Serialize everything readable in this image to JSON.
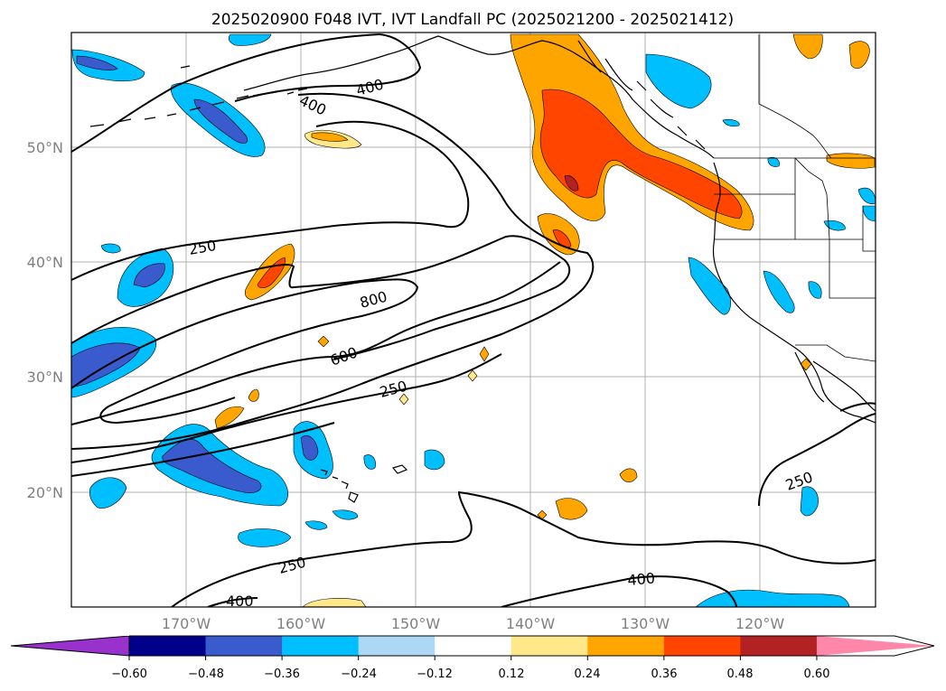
{
  "title": "2025020900 F048 IVT, IVT Landfall PC (2025021200 - 2025021412)",
  "map": {
    "lat_labels": [
      "50°N",
      "40°N",
      "30°N",
      "20°N"
    ],
    "lon_labels": [
      "170°W",
      "160°W",
      "150°W",
      "140°W",
      "130°W",
      "120°W"
    ],
    "gridlines": true
  },
  "contour_labels": [
    "400",
    "400",
    "250",
    "800",
    "600",
    "250",
    "250",
    "400",
    "400",
    "250"
  ],
  "colorbar": {
    "tick_labels": [
      "−0.60",
      "−0.48",
      "−0.36",
      "−0.24",
      "−0.12",
      "0.12",
      "0.24",
      "0.36",
      "0.48",
      "0.60"
    ],
    "colors": [
      "#9932cc",
      "#00008b",
      "#3a5bcd",
      "#00bfff",
      "#add8f5",
      "#ffffff",
      "#ffe88a",
      "#ffa500",
      "#ff4500",
      "#b22222",
      "#ff88aa"
    ]
  }
}
